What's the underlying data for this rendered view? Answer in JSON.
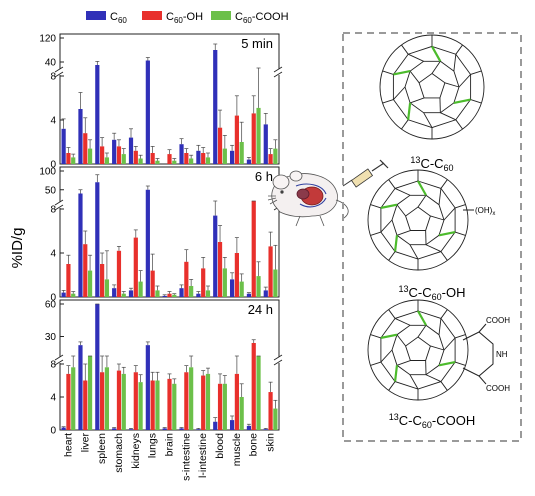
{
  "legend": [
    {
      "label_main": "C",
      "label_sub": "60",
      "label_suffix": "",
      "color": "#3030b8"
    },
    {
      "label_main": "C",
      "label_sub": "60",
      "label_suffix": "-OH",
      "color": "#e8302c"
    },
    {
      "label_main": "C",
      "label_sub": "60",
      "label_suffix": "-COOH",
      "color": "#6cc04a"
    }
  ],
  "ylabel": "%ID/g",
  "molecules": [
    {
      "sup": "13",
      "main": "C-C",
      "sub": "60",
      "suffix": ""
    },
    {
      "sup": "13",
      "main": "C-C",
      "sub": "60",
      "suffix": "-OH"
    },
    {
      "sup": "13",
      "main": "C-C",
      "sub": "60",
      "suffix": "-COOH"
    }
  ],
  "oh_label": "(OH)",
  "oh_sub": "x",
  "cooh_top": "COOH",
  "cooh_bottom": "COOH",
  "nh_label": "NH",
  "colors": {
    "c60": "#3030b8",
    "c60oh": "#e8302c",
    "c60cooh": "#6cc04a",
    "dash": "#9a9a9a",
    "green_bond": "#4cbb2c"
  },
  "chart_data": {
    "type": "bar",
    "categories": [
      "heart",
      "liver",
      "spleen",
      "stomach",
      "kidneys",
      "lungs",
      "brain",
      "s-intestine",
      "l-intestine",
      "blood",
      "muscle",
      "bone",
      "skin"
    ],
    "panels": [
      {
        "label": "5 min",
        "yticks": [
          "0",
          "4",
          "8",
          "40",
          "120"
        ],
        "series": [
          {
            "name": "C60",
            "values": [
              3.2,
              5.0,
              30.0,
              2.2,
              2.4,
              45.0,
              0.0,
              1.8,
              1.2,
              80.0,
              1.2,
              0.4,
              3.6
            ],
            "errors": [
              0.9,
              1.5,
              12.0,
              0.6,
              0.8,
              10.0,
              0.0,
              0.5,
              0.5,
              20.0,
              0.5,
              0.2,
              1.0
            ]
          },
          {
            "name": "C60-OH",
            "values": [
              1.0,
              2.8,
              1.6,
              1.6,
              1.2,
              1.0,
              0.9,
              1.0,
              1.0,
              3.3,
              4.4,
              4.6,
              0.9
            ],
            "errors": [
              0.5,
              1.4,
              0.8,
              0.6,
              0.4,
              0.6,
              0.4,
              0.4,
              0.5,
              1.6,
              1.8,
              1.6,
              0.5
            ]
          },
          {
            "name": "C60-COOH",
            "values": [
              0.6,
              1.4,
              0.6,
              0.9,
              0.5,
              0.3,
              0.3,
              0.5,
              0.6,
              1.4,
              2.0,
              5.1,
              1.4
            ],
            "errors": [
              0.3,
              0.8,
              0.4,
              0.5,
              0.3,
              0.2,
              0.2,
              0.3,
              0.4,
              1.2,
              1.8,
              3.6,
              0.8
            ]
          }
        ]
      },
      {
        "label": "6 h",
        "yticks": [
          "0",
          "4",
          "8",
          "50",
          "100"
        ],
        "series": [
          {
            "name": "C60",
            "values": [
              0.4,
              40.0,
              70.0,
              0.8,
              0.6,
              50.0,
              0.1,
              0.8,
              0.3,
              7.4,
              1.6,
              0.3,
              0.6
            ],
            "errors": [
              0.2,
              10.0,
              20.0,
              0.3,
              0.2,
              10.0,
              0.1,
              0.3,
              0.2,
              2.5,
              0.6,
              0.1,
              0.3
            ]
          },
          {
            "name": "C60-OH",
            "values": [
              3.0,
              4.8,
              3.0,
              4.2,
              5.4,
              2.4,
              0.3,
              3.2,
              2.6,
              5.0,
              4.0,
              9.6,
              4.6
            ],
            "errors": [
              0.8,
              1.2,
              1.0,
              0.4,
              0.7,
              1.5,
              0.2,
              1.1,
              1.0,
              1.5,
              1.4,
              0.3,
              1.3
            ]
          },
          {
            "name": "C60-COOH",
            "values": [
              0.3,
              2.4,
              1.6,
              0.3,
              1.4,
              0.6,
              0.2,
              1.0,
              0.6,
              2.6,
              1.4,
              1.9,
              2.5
            ],
            "errors": [
              0.2,
              1.4,
              2.6,
              0.2,
              1.0,
              0.4,
              0.1,
              0.6,
              0.4,
              1.0,
              0.7,
              1.3,
              2.2
            ]
          }
        ]
      },
      {
        "label": "24 h",
        "yticks": [
          "0",
          "4",
          "8",
          "30",
          "60"
        ],
        "series": [
          {
            "name": "C60",
            "values": [
              0.3,
              22.0,
              65.0,
              0.2,
              0.1,
              22.0,
              0.2,
              0.2,
              0.1,
              1.0,
              1.2,
              0.5,
              0.1
            ],
            "errors": [
              0.1,
              3.0,
              12.0,
              0.1,
              0.1,
              3.0,
              0.1,
              0.1,
              0.1,
              0.5,
              0.5,
              0.2,
              0.1
            ]
          },
          {
            "name": "C60-OH",
            "values": [
              6.8,
              6.0,
              7.0,
              7.2,
              7.0,
              6.0,
              6.2,
              7.0,
              6.6,
              5.6,
              6.8,
              24.0,
              4.6
            ],
            "errors": [
              1.0,
              2.0,
              1.2,
              0.8,
              0.8,
              1.0,
              0.6,
              0.8,
              0.6,
              1.2,
              1.8,
              3.0,
              1.2
            ]
          },
          {
            "name": "C60-COOH",
            "values": [
              7.6,
              9.6,
              7.6,
              6.8,
              5.8,
              6.0,
              5.6,
              7.6,
              6.8,
              5.6,
              4.0,
              10.0,
              2.6
            ],
            "errors": [
              0.7,
              1.6,
              1.0,
              0.8,
              0.9,
              1.0,
              0.6,
              0.7,
              0.7,
              1.0,
              1.6,
              1.2,
              1.0
            ]
          }
        ]
      }
    ]
  }
}
